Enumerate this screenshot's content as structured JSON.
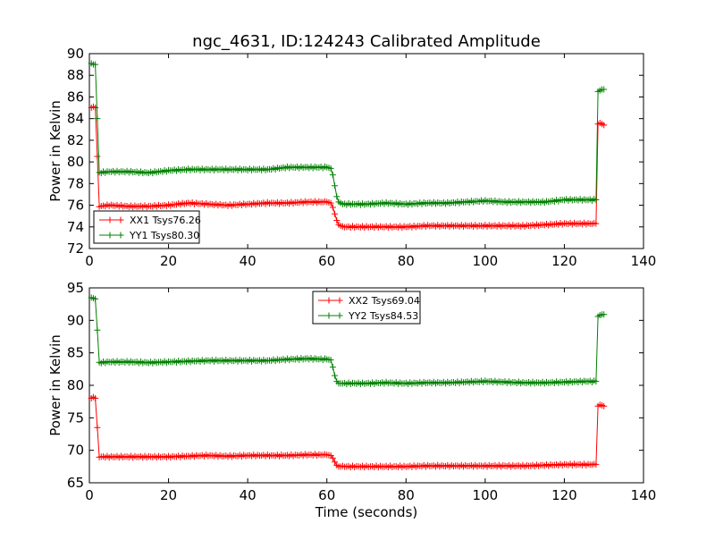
{
  "chart_data": [
    {
      "type": "line",
      "title": "ngc_4631, ID:124243 Calibrated Amplitude",
      "xlabel": "",
      "ylabel": "Power in Kelvin",
      "xlim": [
        0,
        140
      ],
      "ylim": [
        72,
        90
      ],
      "xticks": [
        0,
        20,
        40,
        60,
        80,
        100,
        120,
        140
      ],
      "yticks": [
        72,
        74,
        76,
        78,
        80,
        82,
        84,
        86,
        88,
        90
      ],
      "legend_position": "lower-left",
      "series": [
        {
          "name": "XX1 Tsys76.26",
          "color": "#ff0000",
          "points": [
            [
              0.5,
              85.0
            ],
            [
              1.0,
              85.1
            ],
            [
              1.5,
              85.0
            ],
            [
              2.0,
              80.5
            ],
            [
              2.5,
              75.9
            ],
            [
              5,
              76.0
            ],
            [
              10,
              75.9
            ],
            [
              15,
              75.9
            ],
            [
              20,
              76.0
            ],
            [
              25,
              76.2
            ],
            [
              30,
              76.1
            ],
            [
              35,
              76.0
            ],
            [
              40,
              76.1
            ],
            [
              45,
              76.2
            ],
            [
              50,
              76.2
            ],
            [
              55,
              76.3
            ],
            [
              60,
              76.3
            ],
            [
              61,
              76.2
            ],
            [
              61.5,
              75.8
            ],
            [
              62,
              75.2
            ],
            [
              62.5,
              74.6
            ],
            [
              63,
              74.2
            ],
            [
              64,
              74.0
            ],
            [
              70,
              74.0
            ],
            [
              75,
              74.0
            ],
            [
              80,
              74.0
            ],
            [
              85,
              74.1
            ],
            [
              90,
              74.1
            ],
            [
              95,
              74.1
            ],
            [
              100,
              74.1
            ],
            [
              105,
              74.1
            ],
            [
              110,
              74.1
            ],
            [
              115,
              74.2
            ],
            [
              120,
              74.3
            ],
            [
              125,
              74.3
            ],
            [
              128,
              74.3
            ],
            [
              128.5,
              83.5
            ],
            [
              129,
              83.6
            ],
            [
              129.5,
              83.5
            ],
            [
              130,
              83.4
            ]
          ]
        },
        {
          "name": "YY1 Tsys80.30",
          "color": "#008000",
          "points": [
            [
              0.5,
              89.1
            ],
            [
              1.0,
              89.0
            ],
            [
              1.5,
              89.0
            ],
            [
              2.0,
              84.0
            ],
            [
              2.5,
              79.0
            ],
            [
              5,
              79.1
            ],
            [
              10,
              79.1
            ],
            [
              15,
              79.0
            ],
            [
              20,
              79.2
            ],
            [
              25,
              79.3
            ],
            [
              30,
              79.3
            ],
            [
              35,
              79.3
            ],
            [
              40,
              79.3
            ],
            [
              45,
              79.3
            ],
            [
              50,
              79.5
            ],
            [
              55,
              79.5
            ],
            [
              60,
              79.5
            ],
            [
              61,
              79.4
            ],
            [
              61.5,
              78.8
            ],
            [
              62,
              77.8
            ],
            [
              62.5,
              76.8
            ],
            [
              63,
              76.3
            ],
            [
              64,
              76.1
            ],
            [
              70,
              76.1
            ],
            [
              75,
              76.2
            ],
            [
              80,
              76.1
            ],
            [
              85,
              76.2
            ],
            [
              90,
              76.2
            ],
            [
              95,
              76.3
            ],
            [
              100,
              76.4
            ],
            [
              105,
              76.3
            ],
            [
              110,
              76.3
            ],
            [
              115,
              76.3
            ],
            [
              120,
              76.5
            ],
            [
              125,
              76.5
            ],
            [
              128,
              76.5
            ],
            [
              128.5,
              86.5
            ],
            [
              129,
              86.6
            ],
            [
              129.5,
              86.7
            ],
            [
              130,
              86.7
            ]
          ]
        }
      ]
    },
    {
      "type": "line",
      "title": "",
      "xlabel": "Time (seconds)",
      "ylabel": "Power in Kelvin",
      "xlim": [
        0,
        140
      ],
      "ylim": [
        65,
        95
      ],
      "xticks": [
        0,
        20,
        40,
        60,
        80,
        100,
        120,
        140
      ],
      "yticks": [
        65,
        70,
        75,
        80,
        85,
        90,
        95
      ],
      "legend_position": "upper-center",
      "series": [
        {
          "name": "XX2 Tsys69.04",
          "color": "#ff0000",
          "points": [
            [
              0.5,
              78.0
            ],
            [
              1.0,
              78.2
            ],
            [
              1.5,
              78.0
            ],
            [
              2.0,
              73.5
            ],
            [
              2.5,
              69.0
            ],
            [
              5,
              69.0
            ],
            [
              10,
              69.0
            ],
            [
              15,
              69.0
            ],
            [
              20,
              69.0
            ],
            [
              25,
              69.1
            ],
            [
              30,
              69.2
            ],
            [
              35,
              69.1
            ],
            [
              40,
              69.2
            ],
            [
              45,
              69.2
            ],
            [
              50,
              69.2
            ],
            [
              55,
              69.3
            ],
            [
              60,
              69.3
            ],
            [
              61,
              69.2
            ],
            [
              61.5,
              68.8
            ],
            [
              62,
              68.2
            ],
            [
              62.5,
              67.7
            ],
            [
              63,
              67.5
            ],
            [
              64,
              67.5
            ],
            [
              70,
              67.5
            ],
            [
              75,
              67.5
            ],
            [
              80,
              67.5
            ],
            [
              85,
              67.6
            ],
            [
              90,
              67.6
            ],
            [
              95,
              67.6
            ],
            [
              100,
              67.6
            ],
            [
              105,
              67.6
            ],
            [
              110,
              67.6
            ],
            [
              115,
              67.7
            ],
            [
              120,
              67.8
            ],
            [
              125,
              67.8
            ],
            [
              128,
              67.8
            ],
            [
              128.5,
              76.8
            ],
            [
              129,
              77.0
            ],
            [
              129.5,
              76.9
            ],
            [
              130,
              76.8
            ]
          ]
        },
        {
          "name": "YY2 Tsys84.53",
          "color": "#008000",
          "points": [
            [
              0.5,
              93.5
            ],
            [
              1.0,
              93.4
            ],
            [
              1.5,
              93.3
            ],
            [
              2.0,
              88.5
            ],
            [
              2.5,
              83.5
            ],
            [
              5,
              83.6
            ],
            [
              10,
              83.6
            ],
            [
              15,
              83.5
            ],
            [
              20,
              83.6
            ],
            [
              25,
              83.7
            ],
            [
              30,
              83.8
            ],
            [
              35,
              83.8
            ],
            [
              40,
              83.8
            ],
            [
              45,
              83.8
            ],
            [
              50,
              84.0
            ],
            [
              55,
              84.1
            ],
            [
              60,
              84.0
            ],
            [
              61,
              83.9
            ],
            [
              61.5,
              82.8
            ],
            [
              62,
              81.5
            ],
            [
              62.5,
              80.6
            ],
            [
              63,
              80.3
            ],
            [
              64,
              80.3
            ],
            [
              70,
              80.3
            ],
            [
              75,
              80.4
            ],
            [
              80,
              80.3
            ],
            [
              85,
              80.4
            ],
            [
              90,
              80.4
            ],
            [
              95,
              80.5
            ],
            [
              100,
              80.6
            ],
            [
              105,
              80.5
            ],
            [
              110,
              80.4
            ],
            [
              115,
              80.4
            ],
            [
              120,
              80.5
            ],
            [
              125,
              80.6
            ],
            [
              128,
              80.6
            ],
            [
              128.5,
              90.6
            ],
            [
              129,
              90.8
            ],
            [
              129.5,
              90.9
            ],
            [
              130,
              90.9
            ]
          ]
        }
      ]
    }
  ]
}
